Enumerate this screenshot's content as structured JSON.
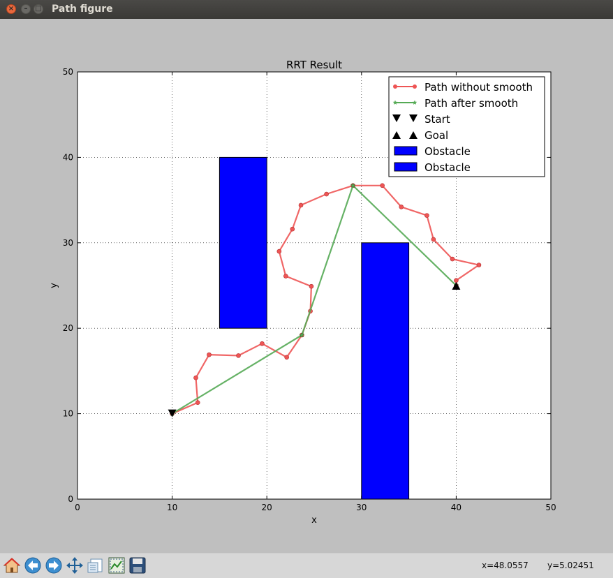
{
  "window": {
    "title": "Path figure"
  },
  "toolbar": {
    "buttons": [
      {
        "icon": "home-icon"
      },
      {
        "icon": "back-arrow-icon"
      },
      {
        "icon": "forward-arrow-icon"
      },
      {
        "icon": "pan-icon"
      },
      {
        "icon": "configure-subplots-icon"
      },
      {
        "icon": "zoom-to-rectangle-icon"
      },
      {
        "icon": "save-icon"
      }
    ],
    "x_readout": "x=48.0557",
    "y_readout": "y=5.02451"
  },
  "colors": {
    "path_raw": "#ee5555",
    "path_smooth": "#55aa55",
    "obstacle": "#0000ff",
    "marker": "#000000"
  },
  "chart_data": {
    "type": "line",
    "title": "RRT Result",
    "xlabel": "x",
    "ylabel": "y",
    "xlim": [
      0,
      50
    ],
    "ylim": [
      0,
      50
    ],
    "xticks": [
      "0",
      "10",
      "20",
      "30",
      "40",
      "50"
    ],
    "yticks": [
      "0",
      "10",
      "20",
      "30",
      "40",
      "50"
    ],
    "grid": true,
    "legend_position": "top-right",
    "legend": [
      "Path without smooth",
      "Path after smooth",
      "Start",
      "Goal",
      "Obstacle",
      "Obstacle"
    ],
    "series": [
      {
        "name": "Path without smooth",
        "color": "#ee5555",
        "marker": "circle",
        "points": [
          [
            10,
            10
          ],
          [
            12.7,
            11.3
          ],
          [
            12.5,
            14.2
          ],
          [
            13.9,
            16.9
          ],
          [
            17.0,
            16.8
          ],
          [
            19.5,
            18.2
          ],
          [
            22.1,
            16.6
          ],
          [
            23.7,
            19.2
          ],
          [
            24.6,
            22.0
          ],
          [
            24.7,
            24.9
          ],
          [
            22.0,
            26.1
          ],
          [
            21.3,
            29.0
          ],
          [
            22.7,
            31.6
          ],
          [
            23.6,
            34.4
          ],
          [
            26.3,
            35.7
          ],
          [
            29.1,
            36.7
          ],
          [
            32.2,
            36.7
          ],
          [
            34.2,
            34.2
          ],
          [
            36.9,
            33.2
          ],
          [
            37.6,
            30.4
          ],
          [
            39.6,
            28.1
          ],
          [
            42.4,
            27.4
          ],
          [
            40.0,
            25.6
          ],
          [
            40,
            25
          ]
        ]
      },
      {
        "name": "Path after smooth",
        "color": "#55aa55",
        "marker": "star",
        "points": [
          [
            10,
            10
          ],
          [
            23.7,
            19.2
          ],
          [
            29.1,
            36.7
          ],
          [
            40,
            25
          ]
        ]
      }
    ],
    "start": {
      "name": "Start",
      "x": 10,
      "y": 10
    },
    "goal": {
      "name": "Goal",
      "x": 40,
      "y": 25
    },
    "obstacles": [
      {
        "name": "Obstacle",
        "x": [
          15,
          20
        ],
        "y": [
          20,
          40
        ]
      },
      {
        "name": "Obstacle",
        "x": [
          30,
          35
        ],
        "y": [
          0,
          30
        ]
      }
    ]
  }
}
